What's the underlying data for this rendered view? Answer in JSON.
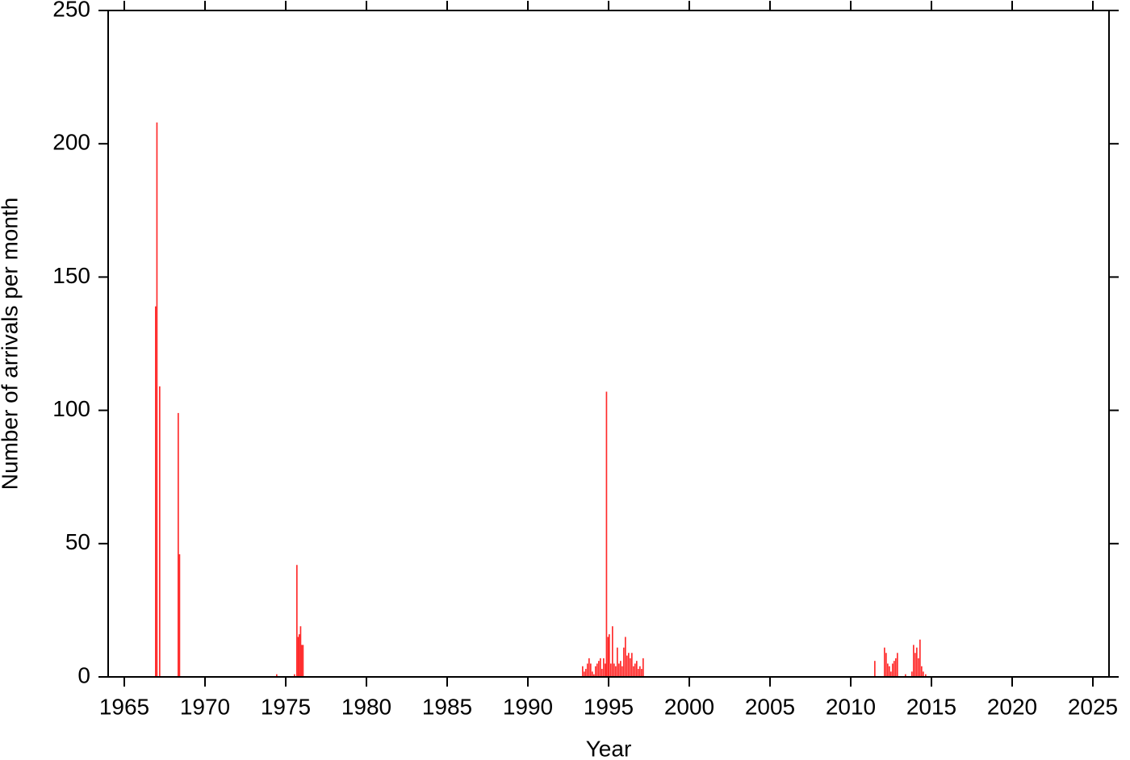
{
  "chart_data": {
    "type": "bar",
    "xlabel": "Year",
    "ylabel": "Number of arrivals per month",
    "color": "#ff2a2a",
    "xlim": [
      1964,
      2026
    ],
    "ylim": [
      0,
      250
    ],
    "xticks": [
      1965,
      1970,
      1975,
      1980,
      1985,
      1990,
      1995,
      2000,
      2005,
      2010,
      2015,
      2020,
      2025
    ],
    "yticks": [
      0,
      50,
      100,
      150,
      200,
      250
    ],
    "x": [
      1966.9,
      1966.98,
      1967.15,
      1968.3,
      1968.38,
      1974.4,
      1975.5,
      1975.65,
      1975.73,
      1975.8,
      1975.88,
      1975.95,
      1976.03,
      1993.35,
      1993.45,
      1993.55,
      1993.65,
      1993.75,
      1993.85,
      1993.95,
      1994.05,
      1994.15,
      1994.25,
      1994.35,
      1994.45,
      1994.55,
      1994.65,
      1994.75,
      1994.83,
      1994.92,
      1995.0,
      1995.1,
      1995.2,
      1995.3,
      1995.4,
      1995.5,
      1995.6,
      1995.7,
      1995.8,
      1995.9,
      1996.0,
      1996.1,
      1996.2,
      1996.3,
      1996.4,
      1996.5,
      1996.6,
      1996.7,
      1996.8,
      1996.9,
      1997.0,
      1997.1,
      2011.45,
      2012.05,
      2012.15,
      2012.25,
      2012.35,
      2012.45,
      2012.55,
      2012.65,
      2012.75,
      2012.85,
      2013.35,
      2013.75,
      2013.85,
      2013.95,
      2014.05,
      2014.15,
      2014.25,
      2014.35,
      2014.45,
      2014.6
    ],
    "values": [
      139,
      208,
      109,
      99,
      46,
      1,
      1,
      42,
      15,
      16,
      19,
      12,
      12,
      4,
      2,
      3,
      5,
      7,
      5,
      2,
      1,
      4,
      5,
      6,
      7,
      3,
      7,
      5,
      107,
      15,
      16,
      5,
      19,
      5,
      4,
      11,
      5,
      6,
      4,
      11,
      15,
      8,
      9,
      7,
      9,
      4,
      5,
      6,
      3,
      4,
      3,
      7,
      6,
      11,
      9,
      5,
      4,
      2,
      5,
      6,
      7,
      9,
      1,
      2,
      12,
      9,
      11,
      7,
      14,
      4,
      2,
      1
    ]
  }
}
